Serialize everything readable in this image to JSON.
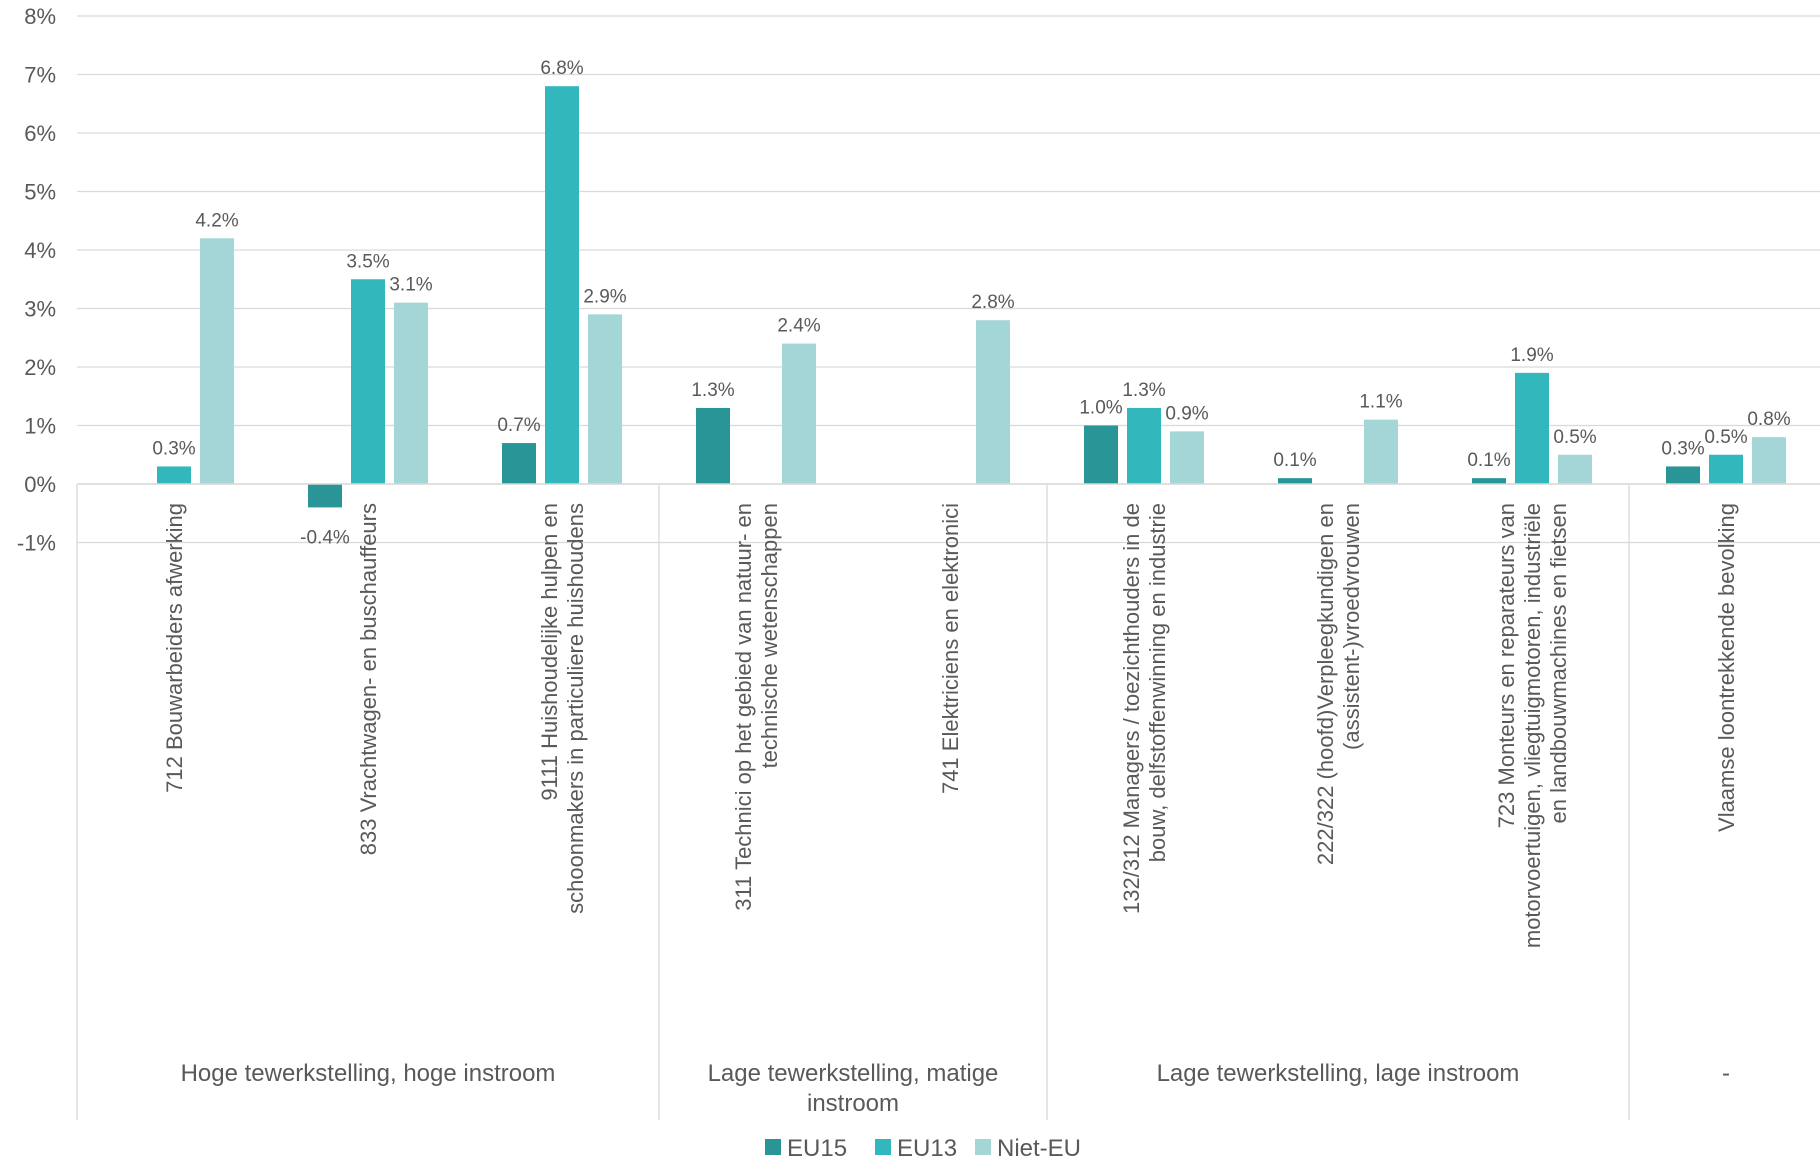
{
  "chart_data": {
    "type": "bar",
    "title": "",
    "xlabel": "",
    "ylabel": "",
    "ylim": [
      -1,
      8
    ],
    "yticks": [
      -1,
      0,
      1,
      2,
      3,
      4,
      5,
      6,
      7,
      8
    ],
    "ytick_labels": [
      "-1%",
      "0%",
      "1%",
      "2%",
      "3%",
      "4%",
      "5%",
      "6%",
      "7%",
      "8%"
    ],
    "grid": true,
    "legend_position": "bottom",
    "categories": [
      [
        "712 Bouwarbeiders afwerking"
      ],
      [
        "833 Vrachtwagen- en buschauffeurs"
      ],
      [
        "9111 Huishoudelijke hulpen en",
        "schoonmakers in particuliere huishoudens"
      ],
      [
        "311 Technici op het gebied van natuur- en",
        "technische wetenschappen"
      ],
      [
        "741 Elektriciens en elektronici"
      ],
      [
        "132/312 Managers / toezichthouders in de",
        "bouw, delfstoffenwinning  en industrie"
      ],
      [
        "222/322 (hoofd)Verpleegkundigen en",
        "(assistent-)vroedvrouwen"
      ],
      [
        "723 Monteurs en reparateurs van",
        "motorvoertuigen, vliegtuigmotoren, industriële",
        "en landbouwmachines en fietsen"
      ],
      [
        "Vlaamse loontrekkende bevolking"
      ]
    ],
    "groups": [
      {
        "label": [
          "Hoge tewerkstelling, hoge instroom"
        ],
        "start": 0,
        "end": 2
      },
      {
        "label": [
          "Lage tewerkstelling, matige",
          "instroom"
        ],
        "start": 3,
        "end": 4
      },
      {
        "label": [
          "Lage tewerkstelling, lage instroom"
        ],
        "start": 5,
        "end": 7
      },
      {
        "label": [
          "-"
        ],
        "start": 8,
        "end": 8
      }
    ],
    "series": [
      {
        "name": "EU15",
        "color": "#2a9596",
        "values": [
          null,
          -0.4,
          0.7,
          1.3,
          null,
          1.0,
          0.1,
          0.1,
          0.3
        ],
        "labels": [
          "",
          "-0.4%",
          "0.7%",
          "1.3%",
          "",
          "1.0%",
          "0.1%",
          "0.1%",
          "0.3%"
        ]
      },
      {
        "name": "EU13",
        "color": "#31b7bc",
        "values": [
          0.3,
          3.5,
          6.8,
          null,
          null,
          1.3,
          null,
          1.9,
          0.5
        ],
        "labels": [
          "0.3%",
          "3.5%",
          "6.8%",
          "",
          "",
          "1.3%",
          "",
          "1.9%",
          "0.5%"
        ]
      },
      {
        "name": "Niet-EU",
        "color": "#a4d6d8",
        "values": [
          4.2,
          3.1,
          2.9,
          2.4,
          2.8,
          0.9,
          1.1,
          0.5,
          0.8
        ],
        "labels": [
          "4.2%",
          "3.1%",
          "2.9%",
          "2.4%",
          "2.8%",
          "0.9%",
          "1.1%",
          "0.5%",
          "0.8%"
        ]
      }
    ]
  }
}
